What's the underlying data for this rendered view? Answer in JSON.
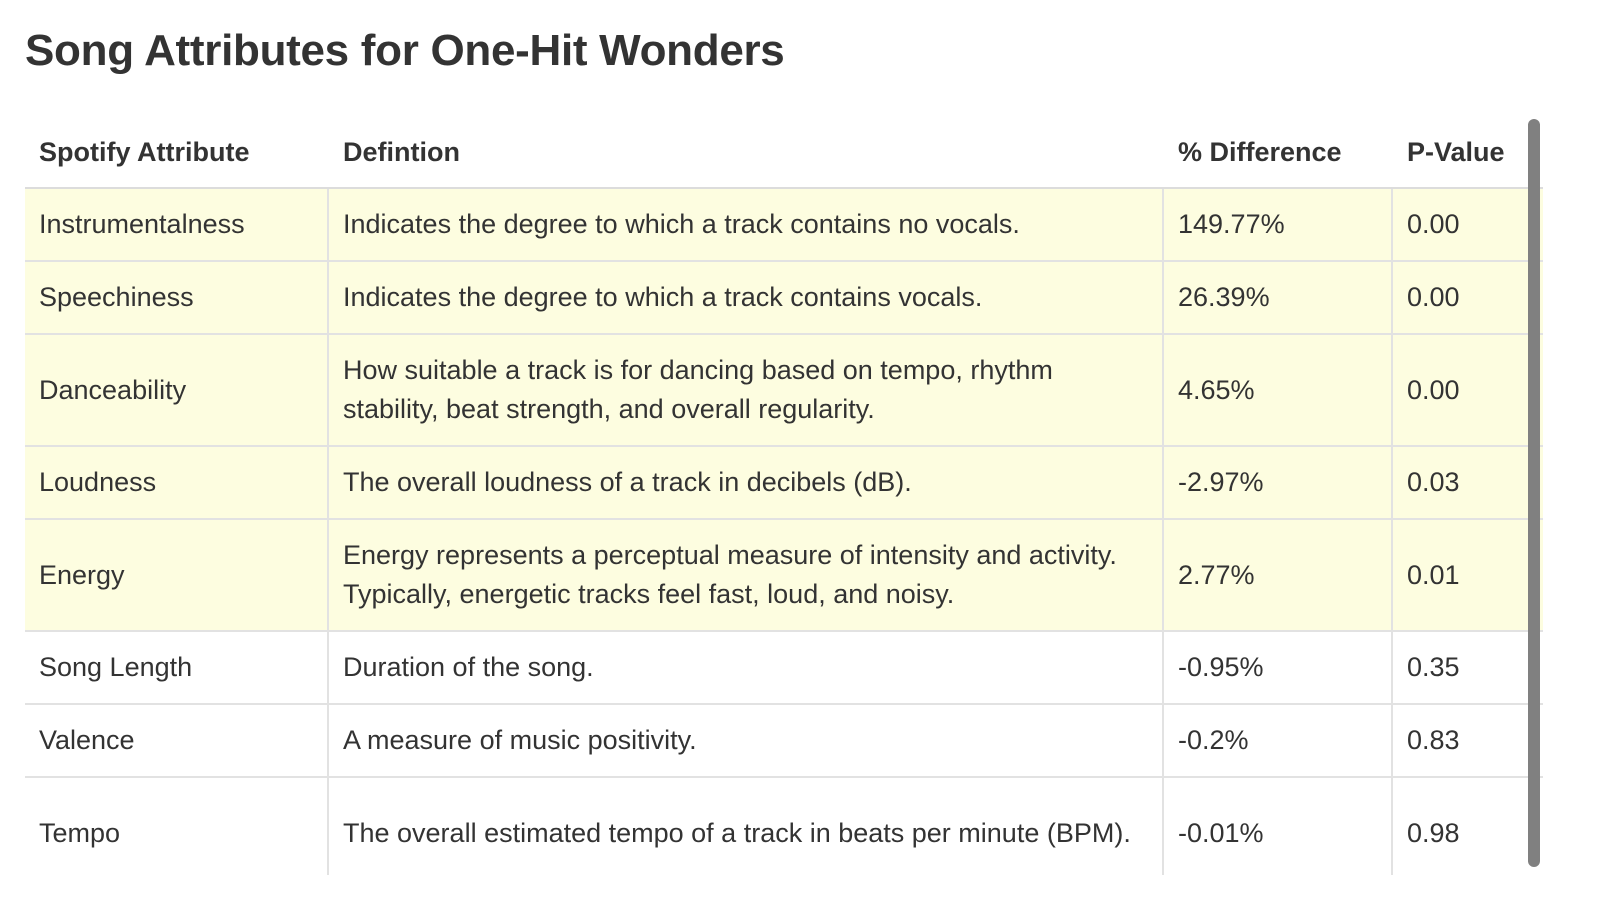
{
  "title": "Song Attributes for One-Hit Wonders",
  "table": {
    "headers": [
      "Spotify Attribute",
      "Defintion",
      "% Difference",
      "P-Value"
    ],
    "rows": [
      {
        "attribute": "Instrumentalness",
        "definition": "Indicates the degree to which a track contains no vocals.",
        "difference": "149.77%",
        "p_value": "0.00",
        "highlighted": true
      },
      {
        "attribute": "Speechiness",
        "definition": "Indicates the degree to which a track contains vocals.",
        "difference": "26.39%",
        "p_value": "0.00",
        "highlighted": true
      },
      {
        "attribute": "Danceability",
        "definition": "How suitable a track is for dancing based on tempo, rhythm stability, beat strength, and overall regularity.",
        "difference": "4.65%",
        "p_value": "0.00",
        "highlighted": true
      },
      {
        "attribute": "Loudness",
        "definition": "The overall loudness of a track in decibels (dB).",
        "difference": "-2.97%",
        "p_value": "0.03",
        "highlighted": true
      },
      {
        "attribute": "Energy",
        "definition": "Energy represents a perceptual measure of intensity and activity. Typically, energetic tracks feel fast, loud, and noisy.",
        "difference": "2.77%",
        "p_value": "0.01",
        "highlighted": true
      },
      {
        "attribute": "Song Length",
        "definition": "Duration of the song.",
        "difference": "-0.95%",
        "p_value": "0.35",
        "highlighted": false
      },
      {
        "attribute": "Valence",
        "definition": "A measure of music positivity.",
        "difference": "-0.2%",
        "p_value": "0.83",
        "highlighted": false
      },
      {
        "attribute": "Tempo",
        "definition": "The overall estimated tempo of a track in beats per minute (BPM).",
        "difference": "-0.01%",
        "p_value": "0.98",
        "highlighted": false
      }
    ]
  },
  "colors": {
    "highlight_row": "#fdfde0",
    "text": "#333333",
    "grid": "#e2e2e2",
    "scrollbar": "#808080"
  }
}
